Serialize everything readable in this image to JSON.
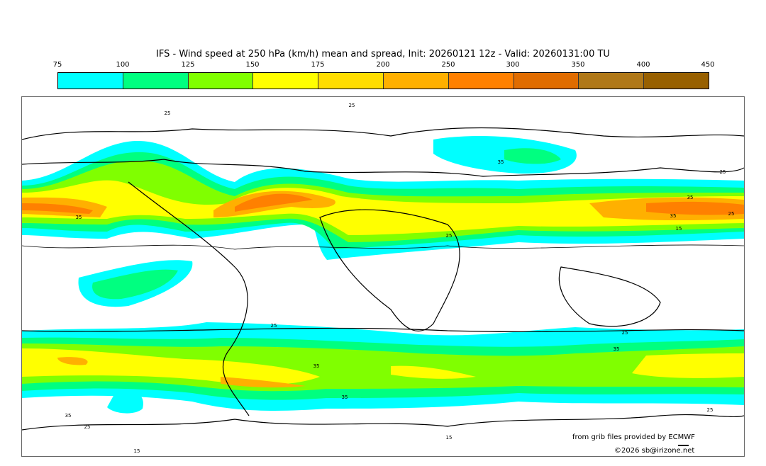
{
  "title": "IFS - Wind speed at 250 hPa (km/h) mean and spread, Init: 20260121 12z - Valid: 20260131:00 TU",
  "colorbar": {
    "ticks": [
      "75",
      "100",
      "125",
      "150",
      "175",
      "200",
      "250",
      "300",
      "350",
      "400",
      "450"
    ],
    "colors": [
      "#00ffff",
      "#00ff80",
      "#80ff00",
      "#ffff00",
      "#ffdd00",
      "#ffb000",
      "#ff8000",
      "#e06c00",
      "#b07818",
      "#986000"
    ]
  },
  "map": {
    "contour_labels": [
      "25",
      "25",
      "35",
      "35",
      "25",
      "35",
      "35",
      "25",
      "15",
      "25",
      "25",
      "35",
      "35",
      "25",
      "35",
      "35",
      "25",
      "15",
      "25",
      "15"
    ]
  },
  "credits": {
    "source": "from grib files provided by ECMWF",
    "copyright": "©2026 sb@irizone.net"
  }
}
